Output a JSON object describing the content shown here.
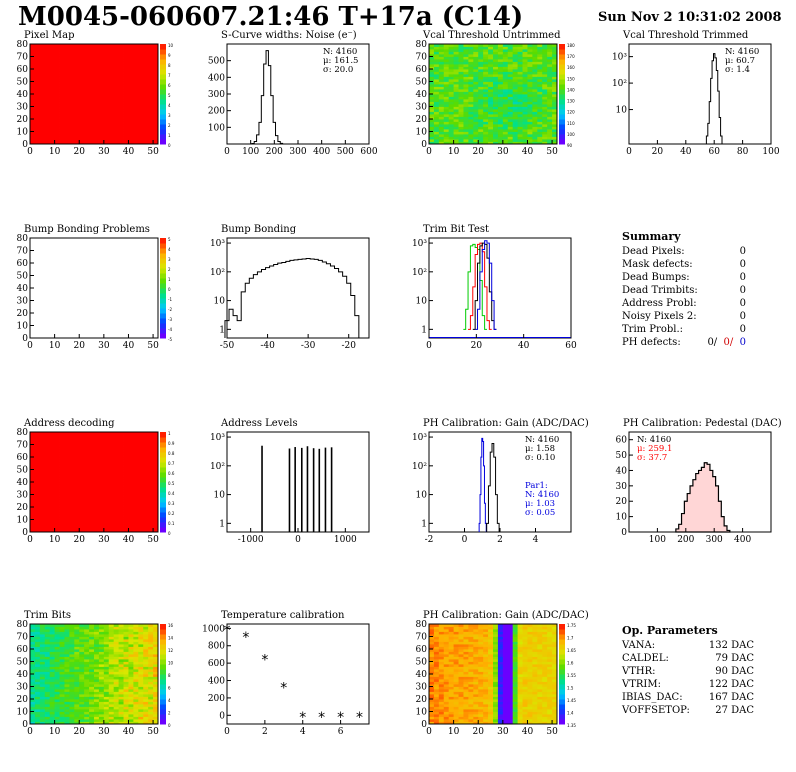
{
  "header": {
    "title": "M0045-060607.21:46 T+17a (C14)",
    "date": "Sun Nov  2 10:31:02 2008"
  },
  "colors": {
    "red": "#ff0000",
    "black": "#000000",
    "green": "#00cc00",
    "blue": "#0000dd",
    "palette": [
      "#6a00ff",
      "#0040ff",
      "#00c8ff",
      "#00e08a",
      "#5adc00",
      "#d8e800",
      "#ffb000",
      "#ff2000"
    ]
  },
  "chart_data": [
    {
      "id": "pixel-map",
      "type": "heatmap",
      "title": "Pixel Map",
      "xlim": [
        0,
        52
      ],
      "ylim": [
        0,
        80
      ],
      "xticks": [
        "0",
        "10",
        "20",
        "30",
        "40",
        "50"
      ],
      "yticks": [
        "0",
        "10",
        "20",
        "30",
        "40",
        "50",
        "60",
        "70",
        "80"
      ],
      "fill": "uniform-red",
      "zticks": [
        "10",
        "9",
        "8",
        "7",
        "6",
        "5",
        "4",
        "3",
        "2",
        "1",
        "0"
      ]
    },
    {
      "id": "scurve",
      "type": "bar",
      "title": "S-Curve widths: Noise (e⁻)",
      "xlim": [
        0,
        600
      ],
      "ylim": [
        0,
        600
      ],
      "xticks": [
        "0",
        "100",
        "200",
        "300",
        "400",
        "500",
        "600"
      ],
      "yticks": [
        "100",
        "200",
        "300",
        "400",
        "500"
      ],
      "stats": [
        "N: 4160",
        "μ: 161.5",
        "σ: 20.0"
      ],
      "series": [
        {
          "x": [
            100,
            110,
            120,
            130,
            140,
            150,
            160,
            170,
            180,
            190,
            200,
            210,
            220,
            230,
            240
          ],
          "values": [
            0,
            3,
            15,
            55,
            130,
            290,
            480,
            560,
            470,
            290,
            130,
            50,
            15,
            4,
            0
          ]
        }
      ]
    },
    {
      "id": "vcal-untrimmed",
      "type": "heatmap",
      "title": "Vcal Threshold Untrimmed",
      "xlim": [
        0,
        52
      ],
      "ylim": [
        0,
        80
      ],
      "xticks": [
        "0",
        "10",
        "20",
        "30",
        "40",
        "50"
      ],
      "yticks": [
        "0",
        "10",
        "20",
        "30",
        "40",
        "50",
        "60",
        "70",
        "80"
      ],
      "fill": "noisy-green",
      "zticks": [
        "180",
        "170",
        "160",
        "150",
        "140",
        "130",
        "120",
        "110",
        "100",
        "90"
      ]
    },
    {
      "id": "vcal-trimmed",
      "type": "bar",
      "log": true,
      "title": "Vcal Threshold Trimmed",
      "xlim": [
        0,
        100
      ],
      "ylim": [
        0.5,
        3000
      ],
      "xticks": [
        "0",
        "20",
        "40",
        "60",
        "80",
        "100"
      ],
      "yticks": [
        "10",
        "10²",
        "10³"
      ],
      "stats": [
        "N: 4160",
        "μ: 60.7",
        "σ:  1.4"
      ],
      "series": [
        {
          "x": [
            55,
            56,
            57,
            58,
            59,
            60,
            61,
            62,
            63,
            64,
            65
          ],
          "values": [
            1,
            3,
            20,
            150,
            700,
            1300,
            900,
            300,
            50,
            5,
            1
          ]
        }
      ]
    },
    {
      "id": "bump-problems",
      "type": "heatmap",
      "title": "Bump Bonding Problems",
      "xlim": [
        0,
        52
      ],
      "ylim": [
        0,
        80
      ],
      "xticks": [
        "0",
        "10",
        "20",
        "30",
        "40",
        "50"
      ],
      "yticks": [
        "0",
        "10",
        "20",
        "30",
        "40",
        "50",
        "60",
        "70",
        "80"
      ],
      "fill": "empty",
      "zticks": [
        "5",
        "4",
        "3",
        "2",
        "1",
        "0",
        "-1",
        "-2",
        "-3",
        "-4",
        "-5"
      ]
    },
    {
      "id": "bump-bonding",
      "type": "bar",
      "log": true,
      "title": "Bump Bonding",
      "xlim": [
        -50,
        -15
      ],
      "ylim": [
        0.5,
        1500
      ],
      "xticks": [
        "-50",
        "-40",
        "-30",
        "-20"
      ],
      "yticks": [
        "1",
        "10",
        "10²",
        "10³"
      ],
      "series": [
        {
          "x": [
            -50,
            -49,
            -48,
            -47,
            -46,
            -45,
            -44,
            -43,
            -42,
            -41,
            -40,
            -39,
            -38,
            -37,
            -36,
            -35,
            -34,
            -33,
            -32,
            -31,
            -30,
            -29,
            -28,
            -27,
            -26,
            -25,
            -24,
            -23,
            -22,
            -21,
            -20,
            -19,
            -18
          ],
          "values": [
            2,
            5,
            3,
            2,
            20,
            40,
            60,
            80,
            100,
            120,
            140,
            160,
            180,
            200,
            210,
            230,
            250,
            260,
            270,
            280,
            290,
            280,
            270,
            250,
            220,
            190,
            160,
            130,
            100,
            70,
            40,
            15,
            3
          ]
        }
      ]
    },
    {
      "id": "trim-bit-test",
      "type": "line",
      "log": true,
      "title": "Trim Bit Test",
      "xlim": [
        0,
        60
      ],
      "ylim": [
        0.5,
        1500
      ],
      "xticks": [
        "0",
        "20",
        "40",
        "60"
      ],
      "yticks": [
        "1",
        "10",
        "10²",
        "10³"
      ],
      "series": [
        {
          "color": "#00cc00",
          "x": [
            15,
            16,
            17,
            18,
            19,
            20,
            21,
            22,
            23,
            24
          ],
          "values": [
            1,
            5,
            100,
            800,
            900,
            700,
            600,
            50,
            3,
            1
          ]
        },
        {
          "color": "#ff0000",
          "x": [
            17,
            18,
            19,
            20,
            21,
            22,
            23,
            24,
            25,
            26
          ],
          "values": [
            1,
            3,
            30,
            400,
            900,
            1000,
            500,
            30,
            2,
            1
          ]
        },
        {
          "color": "#000000",
          "x": [
            19,
            20,
            21,
            22,
            23,
            24,
            25,
            26,
            27,
            28
          ],
          "values": [
            1,
            10,
            200,
            800,
            1000,
            900,
            300,
            20,
            2,
            1
          ]
        },
        {
          "color": "#0000dd",
          "x": [
            20,
            21,
            22,
            23,
            24,
            25,
            26,
            27,
            28
          ],
          "values": [
            1,
            5,
            100,
            600,
            1200,
            1000,
            200,
            10,
            1
          ]
        }
      ]
    },
    {
      "id": "address-decoding",
      "type": "heatmap",
      "title": "Address decoding",
      "xlim": [
        0,
        52
      ],
      "ylim": [
        0,
        80
      ],
      "xticks": [
        "0",
        "10",
        "20",
        "30",
        "40",
        "50"
      ],
      "yticks": [
        "0",
        "10",
        "20",
        "30",
        "40",
        "50",
        "60",
        "70",
        "80"
      ],
      "fill": "uniform-red",
      "zticks": [
        "1",
        "0.9",
        "0.8",
        "0.7",
        "0.6",
        "0.5",
        "0.4",
        "0.3",
        "0.2",
        "0.1",
        "0"
      ]
    },
    {
      "id": "address-levels",
      "type": "bar",
      "log": true,
      "title": "Address Levels",
      "xlim": [
        -1500,
        1500
      ],
      "ylim": [
        0.5,
        1500
      ],
      "xticks": [
        "-1000",
        "0",
        "1000"
      ],
      "yticks": [
        "1",
        "10",
        "10²",
        "10³"
      ],
      "series": [
        {
          "x": [
            -760,
            -180,
            -60,
            80,
            200,
            330,
            450,
            580,
            710
          ],
          "values": [
            500,
            400,
            450,
            420,
            480,
            410,
            390,
            430,
            440
          ]
        }
      ]
    },
    {
      "id": "ph-gain",
      "type": "bar",
      "log": true,
      "title": "PH Calibration: Gain (ADC/DAC)",
      "xlim": [
        -2,
        6
      ],
      "ylim": [
        0.5,
        1500
      ],
      "xticks": [
        "-2",
        "0",
        "2",
        "4"
      ],
      "yticks": [
        "1",
        "10",
        "10²",
        "10³"
      ],
      "stats": [
        "N: 4160",
        "μ: 1.58",
        "σ: 0.10"
      ],
      "stats2": [
        "Par1:",
        "N: 4160",
        "μ: 1.03",
        "σ: 0.05"
      ],
      "series": [
        {
          "color": "#0000dd",
          "x": [
            0.85,
            0.9,
            0.95,
            1.0,
            1.05,
            1.1,
            1.15,
            1.2
          ],
          "values": [
            1,
            10,
            200,
            900,
            700,
            100,
            5,
            1
          ]
        },
        {
          "color": "#000000",
          "x": [
            1.3,
            1.4,
            1.5,
            1.6,
            1.7,
            1.8,
            1.9
          ],
          "values": [
            1,
            20,
            300,
            600,
            200,
            10,
            1
          ]
        }
      ]
    },
    {
      "id": "ph-pedestal",
      "type": "bar",
      "title": "PH Calibration: Pedestal (DAC)",
      "xlim": [
        0,
        500
      ],
      "ylim": [
        0,
        65
      ],
      "xticks": [
        "100",
        "200",
        "300",
        "400"
      ],
      "yticks": [
        "0",
        "10",
        "20",
        "30",
        "40",
        "50",
        "60"
      ],
      "stats": [
        "N: 4160",
        "μ: 259.1",
        "σ: 37.7"
      ],
      "series": [
        {
          "x": [
            170,
            180,
            190,
            200,
            210,
            220,
            230,
            240,
            250,
            260,
            270,
            280,
            290,
            300,
            310,
            320,
            330,
            340,
            350
          ],
          "values": [
            2,
            5,
            12,
            20,
            25,
            30,
            34,
            38,
            40,
            42,
            45,
            44,
            40,
            36,
            30,
            20,
            10,
            4,
            1
          ]
        }
      ]
    },
    {
      "id": "trim-bits",
      "type": "heatmap",
      "title": "Trim Bits",
      "xlim": [
        0,
        52
      ],
      "ylim": [
        0,
        80
      ],
      "xticks": [
        "0",
        "10",
        "20",
        "30",
        "40",
        "50"
      ],
      "yticks": [
        "0",
        "10",
        "20",
        "30",
        "40",
        "50",
        "60",
        "70",
        "80"
      ],
      "fill": "noisy-trim",
      "zticks": [
        "16",
        "14",
        "12",
        "10",
        "8",
        "6",
        "4",
        "2",
        "0"
      ]
    },
    {
      "id": "temp-cal",
      "type": "scatter",
      "title": "Temperature calibration",
      "xlim": [
        0,
        7.5
      ],
      "ylim": [
        -100,
        1050
      ],
      "xticks": [
        "0",
        "2",
        "4",
        "6"
      ],
      "yticks": [
        "0",
        "200",
        "400",
        "600",
        "800",
        "1000"
      ],
      "series": [
        {
          "x": [
            0,
            1,
            2,
            3,
            4,
            5,
            6,
            7
          ],
          "values": [
            980,
            900,
            640,
            320,
            -20,
            -20,
            -20,
            -20
          ]
        }
      ]
    },
    {
      "id": "ph-gain-map",
      "type": "heatmap",
      "title": "PH Calibration: Gain (ADC/DAC)",
      "xlim": [
        0,
        52
      ],
      "ylim": [
        0,
        80
      ],
      "xticks": [
        "0",
        "10",
        "20",
        "30",
        "40",
        "50"
      ],
      "yticks": [
        "0",
        "10",
        "20",
        "30",
        "40",
        "50",
        "60",
        "70",
        "80"
      ],
      "fill": "columns",
      "zticks": [
        "1.75",
        "1.7",
        "1.65",
        "1.6",
        "1.55",
        "1.5",
        "1.45",
        "1.4",
        "1.35"
      ]
    }
  ],
  "summary": {
    "title": "Summary",
    "rows": [
      {
        "k": "Dead Pixels:",
        "v": "0"
      },
      {
        "k": "Mask defects:",
        "v": "0"
      },
      {
        "k": "Dead Bumps:",
        "v": "0"
      },
      {
        "k": "Dead Trimbits:",
        "v": "0"
      },
      {
        "k": "Address Probl:",
        "v": "0"
      },
      {
        "k": "Noisy Pixels 2:",
        "v": "0"
      },
      {
        "k": "Trim Probl.:",
        "v": "0"
      }
    ],
    "ph_defects": {
      "k": "PH defects:",
      "a": "0/",
      "b": "0/",
      "c": "0"
    }
  },
  "op_params": {
    "title": "Op. Parameters",
    "rows": [
      {
        "k": "VANA:",
        "v": "132 DAC"
      },
      {
        "k": "CALDEL:",
        "v": "79 DAC"
      },
      {
        "k": "VTHR:",
        "v": "90 DAC"
      },
      {
        "k": "VTRIM:",
        "v": "122 DAC"
      },
      {
        "k": "IBIAS_DAC:",
        "v": "167 DAC"
      },
      {
        "k": "VOFFSETOP:",
        "v": "27 DAC"
      }
    ]
  }
}
